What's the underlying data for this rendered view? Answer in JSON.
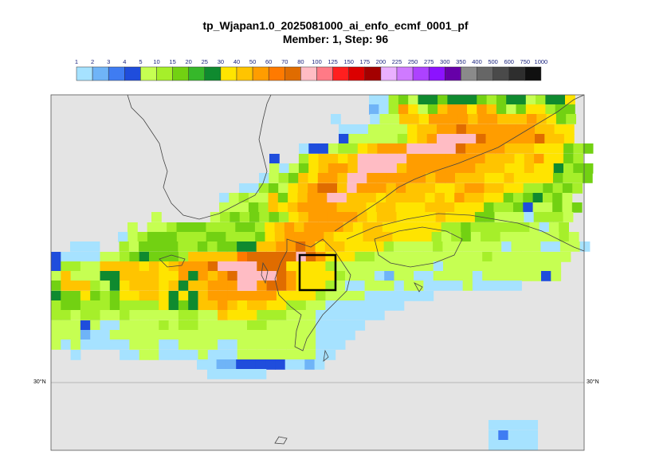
{
  "title": {
    "line1": "tp_Wjapan1.0_2025081000_ai_enfo_ecmf_0001_pf",
    "line2": "Member: 1, Step: 96"
  },
  "colorbar": {
    "levels": [
      "1",
      "2",
      "3",
      "4",
      "5",
      "10",
      "15",
      "20",
      "25",
      "30",
      "40",
      "50",
      "60",
      "70",
      "80",
      "100",
      "125",
      "150",
      "175",
      "200",
      "225",
      "250",
      "275",
      "300",
      "350",
      "400",
      "500",
      "600",
      "750",
      "1000"
    ],
    "colors": [
      "#a6e2ff",
      "#6fb4f7",
      "#3f7cf2",
      "#1f4ddc",
      "#c6ff52",
      "#a6ef2a",
      "#72d112",
      "#36b82a",
      "#0f8a2f",
      "#ffe400",
      "#ffc400",
      "#ff9d00",
      "#ff7a00",
      "#e06c00",
      "#ffbcc4",
      "#ff7a86",
      "#ff1f1f",
      "#db0000",
      "#a30000",
      "#eab0ff",
      "#cf7aff",
      "#ad42ff",
      "#8c12ff",
      "#6600a8",
      "#8a8a8a",
      "#666666",
      "#4a4a4a",
      "#2e2e2e",
      "#101010"
    ]
  },
  "map": {
    "lat_label_left": "30°N",
    "lat_label_right": "30°N",
    "land_color": "#e4e4e4",
    "sea_color": "#e4e4e4",
    "box_color": "#000000"
  }
}
